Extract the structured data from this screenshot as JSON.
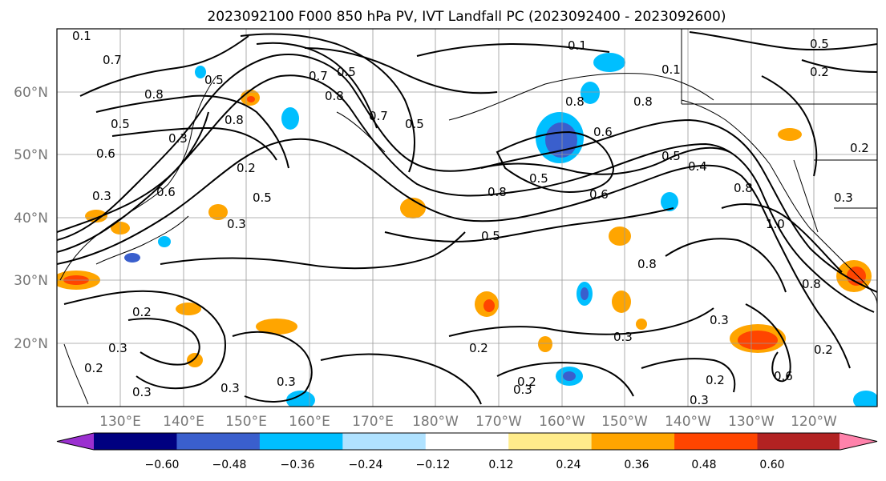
{
  "title": "2023092100 F000 850 hPa PV, IVT Landfall PC (2023092400 - 2023092600)",
  "lon_labels": [
    "130°E",
    "140°E",
    "150°E",
    "160°E",
    "170°E",
    "180°W",
    "170°W",
    "160°W",
    "150°W",
    "140°W",
    "130°W",
    "120°W"
  ],
  "lat_labels": [
    "60°N",
    "50°N",
    "40°N",
    "30°N",
    "20°N"
  ],
  "colorbar": {
    "ticks": [
      "−0.60",
      "−0.48",
      "−0.36",
      "−0.24",
      "−0.12",
      "0.12",
      "0.24",
      "0.36",
      "0.48",
      "0.60"
    ],
    "colors": [
      "#9b30d0",
      "#000080",
      "#3a5fcd",
      "#00bfff",
      "#b0e2ff",
      "#ffffff",
      "#ffec8b",
      "#ffa500",
      "#ff4500",
      "#b22222",
      "#ff82ab"
    ]
  },
  "contour_labels": [
    "0.7",
    "0.5",
    "0.8",
    "0.7",
    "0.8",
    "0.8",
    "0.7",
    "0.6",
    "0.3",
    "0.5",
    "0.2",
    "0.3",
    "0.6",
    "0.5",
    "0.3",
    "0.5",
    "0.8",
    "0.1",
    "0.1",
    "0.5",
    "0.8",
    "0.6",
    "0.5",
    "0.5",
    "0.8",
    "0.4",
    "0.8",
    "0.6",
    "1.0",
    "0.8",
    "0.3",
    "0.5",
    "0.2",
    "0.8",
    "0.2",
    "0.3",
    "0.3",
    "0.3",
    "0.2",
    "0.2",
    "0.3",
    "0.3",
    "0.3",
    "0.3",
    "0.2",
    "0.3",
    "0.2",
    "0.2",
    "0.6",
    "0.5",
    "0.1",
    "0.2"
  ]
}
